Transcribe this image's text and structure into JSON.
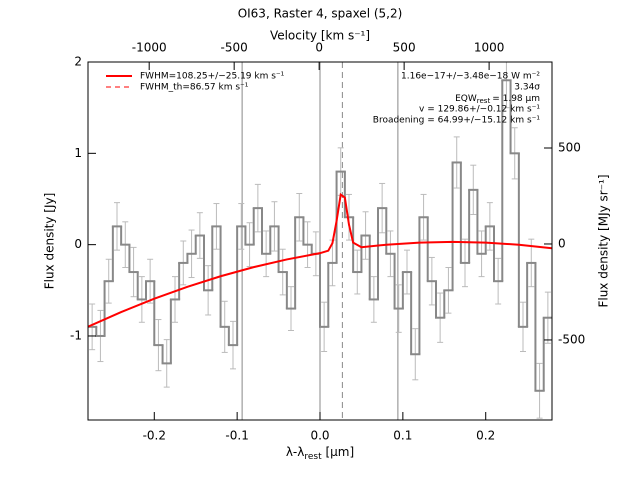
{
  "chart_data": {
    "type": "spectrum",
    "title": "OI63, Raster 4, spaxel (5,2)",
    "xlabel": {
      "main": "λ-λ",
      "sub": "rest",
      "unit": " [μm]"
    },
    "ylabel": "Flux density [Jy]",
    "y2label": "Flux density [MJy sr⁻¹]",
    "x2label": "Velocity [km s⁻¹]",
    "xlim": [
      -0.28,
      0.28
    ],
    "xticks": [
      -0.2,
      -0.1,
      {
        "value": 0,
        "label": "0.0"
      },
      0.1,
      0.2
    ],
    "x2lim": [
      -1360,
      1370
    ],
    "x2ticks": [
      -1000,
      -500,
      0,
      500,
      1000
    ],
    "ylim": [
      -1.92,
      2
    ],
    "yticks": [
      -1,
      0,
      1,
      2
    ],
    "y2lim": [
      -917,
      948
    ],
    "y2ticks": [
      -500,
      0,
      500
    ],
    "x": [
      -0.275,
      -0.265,
      -0.255,
      -0.245,
      -0.235,
      -0.225,
      -0.215,
      -0.205,
      -0.195,
      -0.185,
      -0.175,
      -0.165,
      -0.155,
      -0.145,
      -0.135,
      -0.125,
      -0.115,
      -0.105,
      -0.095,
      -0.085,
      -0.075,
      -0.065,
      -0.055,
      -0.045,
      -0.035,
      -0.025,
      -0.015,
      -0.005,
      0.005,
      0.015,
      0.025,
      0.035,
      0.045,
      0.055,
      0.065,
      0.075,
      0.085,
      0.095,
      0.105,
      0.115,
      0.125,
      0.135,
      0.145,
      0.155,
      0.165,
      0.175,
      0.185,
      0.195,
      0.205,
      0.215,
      0.225,
      0.235,
      0.245,
      0.255,
      0.265,
      0.275
    ],
    "series": [
      {
        "name": "data",
        "color": "#888888",
        "values": [
          -0.9,
          -1.0,
          -0.4,
          0.2,
          0.0,
          -0.3,
          -0.6,
          -0.4,
          -1.1,
          -1.3,
          -0.6,
          -0.2,
          -0.1,
          0.1,
          -0.5,
          0.2,
          -0.9,
          -1.1,
          0.2,
          0.0,
          0.4,
          -0.1,
          0.2,
          -0.3,
          -0.7,
          0.3,
          0.0,
          -0.1,
          -0.9,
          -0.2,
          0.8,
          0.3,
          -0.3,
          0.1,
          -0.6,
          0.4,
          -0.1,
          -0.7,
          -0.3,
          -1.2,
          0.3,
          -0.4,
          -0.8,
          -0.5,
          0.9,
          -0.2,
          0.6,
          -0.1,
          0.2,
          -0.4,
          1.8,
          1.0,
          -0.9,
          -0.2,
          -1.6,
          -0.8
        ],
        "errors": [
          0.25,
          0.28,
          0.24,
          0.26,
          0.25,
          0.27,
          0.25,
          0.24,
          0.28,
          0.26,
          0.25,
          0.24,
          0.26,
          0.25,
          0.27,
          0.25,
          0.28,
          0.26,
          0.25,
          0.24,
          0.26,
          0.25,
          0.27,
          0.25,
          0.24,
          0.26,
          0.25,
          0.24,
          0.27,
          0.25,
          0.26,
          0.25,
          0.24,
          0.26,
          0.25,
          0.27,
          0.25,
          0.26,
          0.24,
          0.28,
          0.25,
          0.26,
          0.27,
          0.25,
          0.28,
          0.26,
          0.27,
          0.25,
          0.26,
          0.25,
          0.3,
          0.28,
          0.27,
          0.26,
          0.3,
          0.28
        ],
        "error_color": "#bbbbbb"
      }
    ],
    "fit": {
      "name": "FWHM=108.25+/−25.19 km s⁻¹",
      "color": "#ff0000",
      "x": [
        -0.28,
        -0.24,
        -0.2,
        -0.16,
        -0.12,
        -0.08,
        -0.04,
        0,
        0.01,
        0.015,
        0.02,
        0.025,
        0.03,
        0.035,
        0.04,
        0.05,
        0.08,
        0.12,
        0.16,
        0.2,
        0.24,
        0.28
      ],
      "values": [
        -0.899,
        -0.738,
        -0.592,
        -0.462,
        -0.346,
        -0.246,
        -0.162,
        -0.093,
        -0.066,
        0.016,
        0.259,
        0.548,
        0.515,
        0.218,
        0.022,
        -0.028,
        -0.001,
        0.022,
        0.03,
        0.022,
        -0.001,
        -0.039
      ]
    },
    "thermal_legend": {
      "name": "FWHM_th=86.57 km s⁻¹",
      "color": "#ff0000"
    },
    "vlines": [
      -0.094,
      0,
      0.094
    ],
    "vline_color": "#888888",
    "dashed_vline": 0.027,
    "annotations": [
      "1.16e−17+/−3.48e−18 W m⁻²",
      "3.34σ"
    ],
    "eqw": {
      "main": "EQW",
      "sub": "rest",
      "rest": "= 1.98 μm"
    },
    "annotations2": [
      "v = 129.86+/−0.12 km s⁻¹",
      "Broadening = 64.99+/−15.12 km s⁻¹"
    ]
  }
}
